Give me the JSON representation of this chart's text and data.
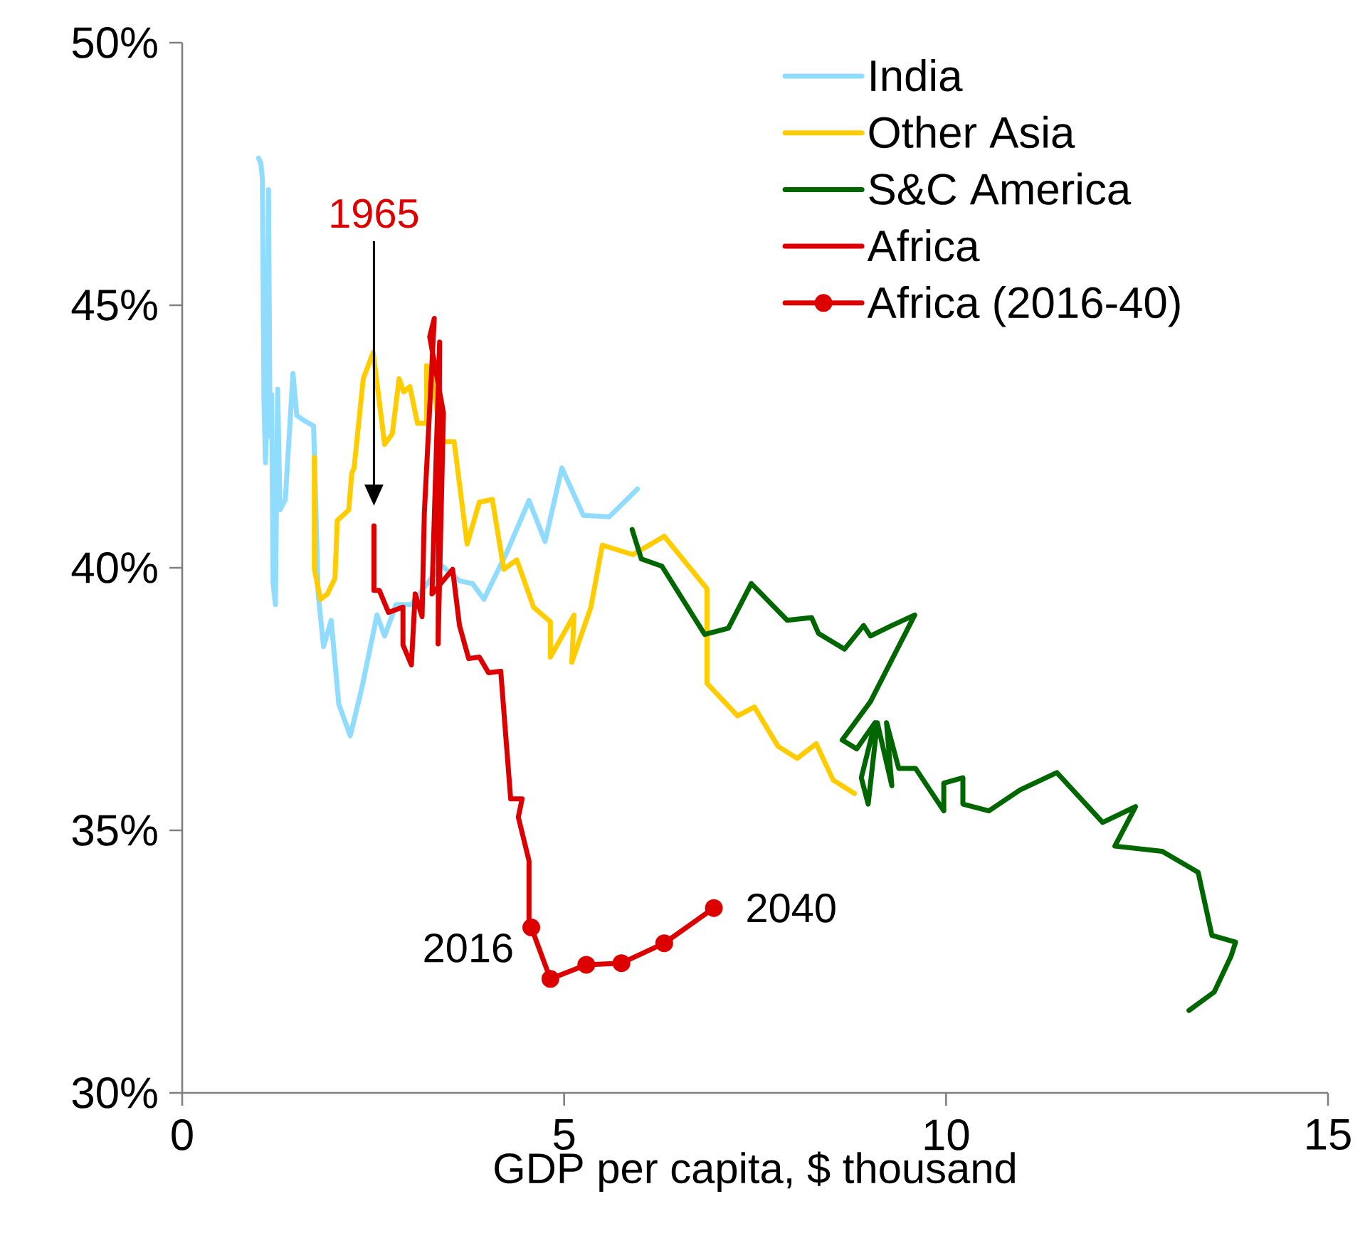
{
  "chart_data": {
    "type": "line",
    "xlabel": "GDP per capita, $ thousand",
    "xlim": [
      0,
      15
    ],
    "xticks": [
      0,
      5,
      10,
      15
    ],
    "ylim": [
      30,
      50
    ],
    "yticks": [
      {
        "value": 30,
        "label": "30%"
      },
      {
        "value": 35,
        "label": "35%"
      },
      {
        "value": 40,
        "label": "40%"
      },
      {
        "value": 45,
        "label": "45%"
      },
      {
        "value": 50,
        "label": "50%"
      }
    ],
    "grid": false,
    "legend": "top right",
    "series": [
      {
        "name": "India",
        "color": "#8fdcff",
        "marker": "none",
        "x": [
          1.0,
          1.03,
          1.05,
          1.07,
          1.09,
          1.11,
          1.13,
          1.15,
          1.17,
          1.19,
          1.22,
          1.25,
          1.28,
          1.35,
          1.45,
          1.5,
          1.6,
          1.72,
          1.78,
          1.85,
          1.95,
          2.05,
          2.2,
          2.35,
          2.55,
          2.65,
          2.8,
          3.0,
          3.39,
          3.63,
          3.8,
          3.95,
          4.26,
          4.54,
          4.75,
          4.97,
          5.25,
          5.59,
          5.96
        ],
        "values": [
          47.8,
          47.7,
          47.4,
          43.2,
          42.0,
          43.1,
          47.2,
          42.5,
          43.3,
          39.7,
          39.3,
          43.4,
          41.1,
          41.3,
          43.7,
          42.9,
          42.8,
          42.7,
          39.5,
          38.5,
          39.0,
          37.4,
          36.8,
          37.7,
          39.1,
          38.7,
          39.3,
          39.3,
          40.05,
          39.75,
          39.7,
          39.4,
          40.33,
          41.28,
          40.5,
          41.9,
          41.0,
          40.97,
          41.5
        ]
      },
      {
        "name": "Other Asia",
        "color": "#ffcc00",
        "marker": "none",
        "x": [
          1.73,
          1.73,
          1.81,
          1.9,
          2.0,
          2.03,
          2.18,
          2.22,
          2.25,
          2.37,
          2.5,
          2.65,
          2.75,
          2.84,
          2.9,
          2.98,
          3.08,
          3.2,
          3.2,
          3.27,
          3.39,
          3.56,
          3.73,
          3.89,
          4.06,
          4.21,
          4.38,
          4.6,
          4.82,
          4.82,
          5.13,
          5.1,
          5.35,
          5.5,
          5.9,
          6.31,
          6.87,
          6.87,
          7.27,
          7.49,
          7.8,
          8.05,
          8.3,
          8.52,
          8.8
        ],
        "values": [
          42.1,
          39.97,
          39.4,
          39.5,
          39.8,
          40.9,
          41.1,
          41.8,
          41.9,
          43.6,
          44.1,
          42.35,
          42.55,
          43.6,
          43.35,
          43.45,
          42.75,
          42.75,
          43.85,
          43.7,
          42.4,
          42.4,
          40.45,
          41.25,
          41.3,
          39.97,
          40.15,
          39.25,
          38.97,
          38.3,
          39.1,
          38.2,
          39.25,
          40.43,
          40.25,
          40.6,
          39.6,
          37.8,
          37.18,
          37.35,
          36.6,
          36.37,
          36.65,
          35.96,
          35.7
        ]
      },
      {
        "name": "S&C America",
        "color": "#006600",
        "marker": "none",
        "x": [
          5.89,
          6.01,
          6.28,
          6.84,
          7.15,
          7.45,
          7.92,
          8.24,
          8.33,
          8.67,
          8.92,
          9.01,
          9.29,
          9.59,
          9.29,
          9.01,
          8.64,
          8.83,
          9.07,
          8.89,
          8.98,
          9.1,
          9.29,
          9.22,
          9.38,
          9.6,
          9.97,
          9.97,
          10.22,
          10.22,
          10.56,
          10.97,
          11.45,
          12.05,
          12.48,
          12.21,
          12.83,
          13.3,
          13.48,
          13.79,
          13.73,
          13.51,
          13.18
        ],
        "values": [
          40.73,
          40.17,
          40.03,
          38.73,
          38.85,
          39.7,
          39.0,
          39.05,
          38.75,
          38.45,
          38.9,
          38.7,
          38.9,
          39.1,
          38.25,
          37.45,
          36.72,
          36.55,
          37.05,
          36.0,
          35.5,
          37.05,
          35.85,
          37.05,
          36.18,
          36.18,
          35.37,
          35.9,
          36.0,
          35.5,
          35.37,
          35.77,
          36.1,
          35.15,
          35.45,
          34.7,
          34.6,
          34.2,
          33.0,
          32.87,
          32.6,
          31.92,
          31.57
        ]
      },
      {
        "name": "Africa",
        "color": "#dd0000",
        "marker": "none",
        "x": [
          2.51,
          2.51,
          2.58,
          2.7,
          2.89,
          2.89,
          3.0,
          3.05,
          3.14,
          3.17,
          3.3,
          3.24,
          3.42,
          3.35,
          3.37,
          3.27,
          3.54,
          3.63,
          3.75,
          3.89,
          4.01,
          4.17,
          4.3,
          4.45,
          4.4,
          4.54,
          4.54,
          4.57
        ],
        "values": [
          40.8,
          39.57,
          39.57,
          39.15,
          39.25,
          38.53,
          38.15,
          39.5,
          39.07,
          41.05,
          44.75,
          44.4,
          42.95,
          38.55,
          44.3,
          39.5,
          39.97,
          38.9,
          38.27,
          38.3,
          38.0,
          38.03,
          35.6,
          35.6,
          35.25,
          34.42,
          33.25,
          33.15
        ]
      },
      {
        "name": "Africa (2016-40)",
        "color": "#dd0000",
        "marker": "circle",
        "x": [
          4.57,
          4.82,
          5.29,
          5.75,
          6.31,
          6.96
        ],
        "values": [
          33.15,
          32.17,
          32.44,
          32.47,
          32.85,
          33.52
        ]
      }
    ],
    "annotations": [
      "1965",
      {
        "text": "2016",
        "x": 4.57,
        "y": 33.15
      },
      {
        "text": "2040",
        "x": 6.96,
        "y": 33.52
      }
    ]
  }
}
